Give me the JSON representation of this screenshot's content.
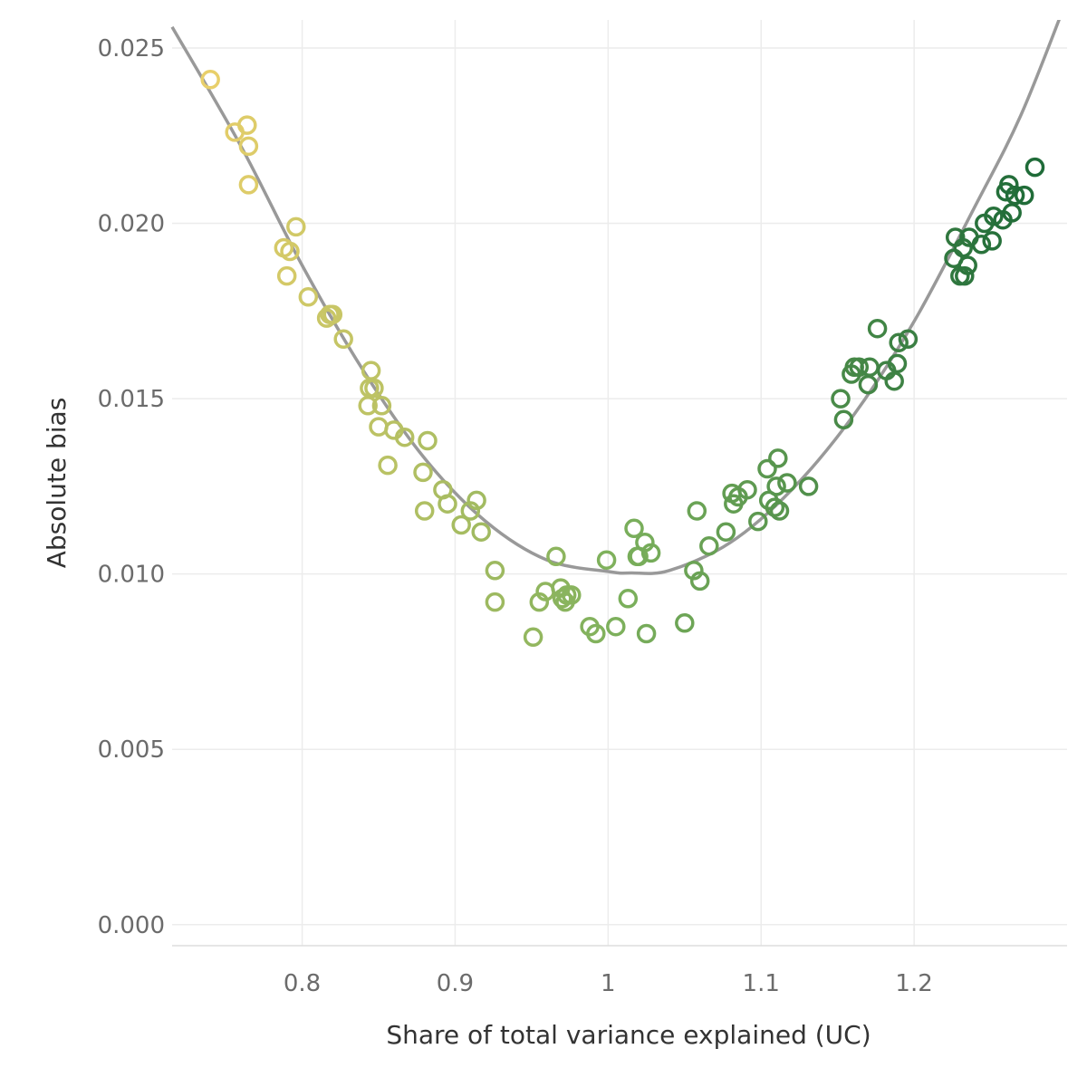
{
  "chart_data": {
    "type": "scatter",
    "title": "",
    "xlabel": "Share of total variance explained (UC)",
    "ylabel": "Absolute bias",
    "xlim": [
      0.715,
      1.3
    ],
    "ylim": [
      -0.0006,
      0.0258
    ],
    "x_ticks": [
      {
        "value": 0.8,
        "label": "0.8"
      },
      {
        "value": 0.9,
        "label": "0.9"
      },
      {
        "value": 1.0,
        "label": "1"
      },
      {
        "value": 1.1,
        "label": "1.1"
      },
      {
        "value": 1.2,
        "label": "1.2"
      }
    ],
    "y_ticks": [
      {
        "value": 0.0,
        "label": "0.000"
      },
      {
        "value": 0.005,
        "label": "0.005"
      },
      {
        "value": 0.01,
        "label": "0.010"
      },
      {
        "value": 0.015,
        "label": "0.015"
      },
      {
        "value": 0.02,
        "label": "0.020"
      },
      {
        "value": 0.025,
        "label": "0.025"
      }
    ],
    "grid": true,
    "legend": "none",
    "color_scale": {
      "low": "#e8cf6a",
      "mid": "#7cb05c",
      "high": "#1f6b38",
      "x_low": 0.74,
      "x_high": 1.275
    },
    "fit_curve": {
      "type": "smooth",
      "color": "#999999",
      "x": [
        0.715,
        0.76,
        0.8,
        0.84,
        0.88,
        0.92,
        0.96,
        1.0,
        1.015,
        1.04,
        1.08,
        1.12,
        1.16,
        1.2,
        1.24,
        1.27,
        1.3
      ],
      "y": [
        0.0256,
        0.0222,
        0.0188,
        0.0158,
        0.0133,
        0.0115,
        0.0104,
        0.01007,
        0.01003,
        0.0101,
        0.0109,
        0.0124,
        0.0145,
        0.0172,
        0.0205,
        0.0231,
        0.0264
      ]
    },
    "series": [
      {
        "x": [
          0.74,
          0.756,
          0.764,
          0.765,
          0.765,
          0.788,
          0.79,
          0.792,
          0.796,
          0.804,
          0.816,
          0.818,
          0.82,
          0.827,
          0.843,
          0.844,
          0.845,
          0.847,
          0.85,
          0.852,
          0.856,
          0.86,
          0.867,
          0.879,
          0.88,
          0.882,
          0.892,
          0.895,
          0.904,
          0.91,
          0.914,
          0.917,
          0.926,
          0.926,
          0.951,
          0.955,
          0.959,
          0.966,
          0.969,
          0.97,
          0.972,
          0.973,
          0.976,
          0.988,
          0.992,
          0.999,
          1.005,
          1.013,
          1.017,
          1.019,
          1.02,
          1.024,
          1.025,
          1.028,
          1.05,
          1.056,
          1.058,
          1.06,
          1.066,
          1.077,
          1.081,
          1.082,
          1.085,
          1.091,
          1.098,
          1.104,
          1.105,
          1.109,
          1.11,
          1.112,
          1.111,
          1.117,
          1.131,
          1.152,
          1.154,
          1.159,
          1.161,
          1.164,
          1.17,
          1.171,
          1.176,
          1.182,
          1.187,
          1.189,
          1.19,
          1.196,
          1.226,
          1.227,
          1.23,
          1.232,
          1.233,
          1.235,
          1.236,
          1.244,
          1.246,
          1.251,
          1.252,
          1.258,
          1.262,
          1.264,
          1.266,
          1.26,
          1.272,
          1.279
        ],
        "y": [
          0.0241,
          0.0226,
          0.0228,
          0.0222,
          0.0211,
          0.0193,
          0.0185,
          0.0192,
          0.0199,
          0.0179,
          0.0173,
          0.0174,
          0.0174,
          0.0167,
          0.0148,
          0.0153,
          0.0158,
          0.0153,
          0.0142,
          0.0148,
          0.0131,
          0.0141,
          0.0139,
          0.0129,
          0.0118,
          0.0138,
          0.0124,
          0.012,
          0.0114,
          0.0118,
          0.0121,
          0.0112,
          0.0092,
          0.0101,
          0.0082,
          0.0092,
          0.0095,
          0.0105,
          0.0096,
          0.0093,
          0.0092,
          0.0094,
          0.0094,
          0.0085,
          0.0083,
          0.0104,
          0.0085,
          0.0093,
          0.0113,
          0.0105,
          0.0105,
          0.0109,
          0.0083,
          0.0106,
          0.0086,
          0.0101,
          0.0118,
          0.0098,
          0.0108,
          0.0112,
          0.0123,
          0.012,
          0.0122,
          0.0124,
          0.0115,
          0.013,
          0.0121,
          0.0119,
          0.0125,
          0.0118,
          0.0133,
          0.0126,
          0.0125,
          0.015,
          0.0144,
          0.0157,
          0.0159,
          0.0159,
          0.0154,
          0.0159,
          0.017,
          0.0158,
          0.0155,
          0.016,
          0.0166,
          0.0167,
          0.019,
          0.0196,
          0.0185,
          0.0193,
          0.0185,
          0.0188,
          0.0196,
          0.0194,
          0.02,
          0.0195,
          0.0202,
          0.0201,
          0.0211,
          0.0203,
          0.0208,
          0.0209,
          0.0208,
          0.0216
        ]
      }
    ]
  }
}
